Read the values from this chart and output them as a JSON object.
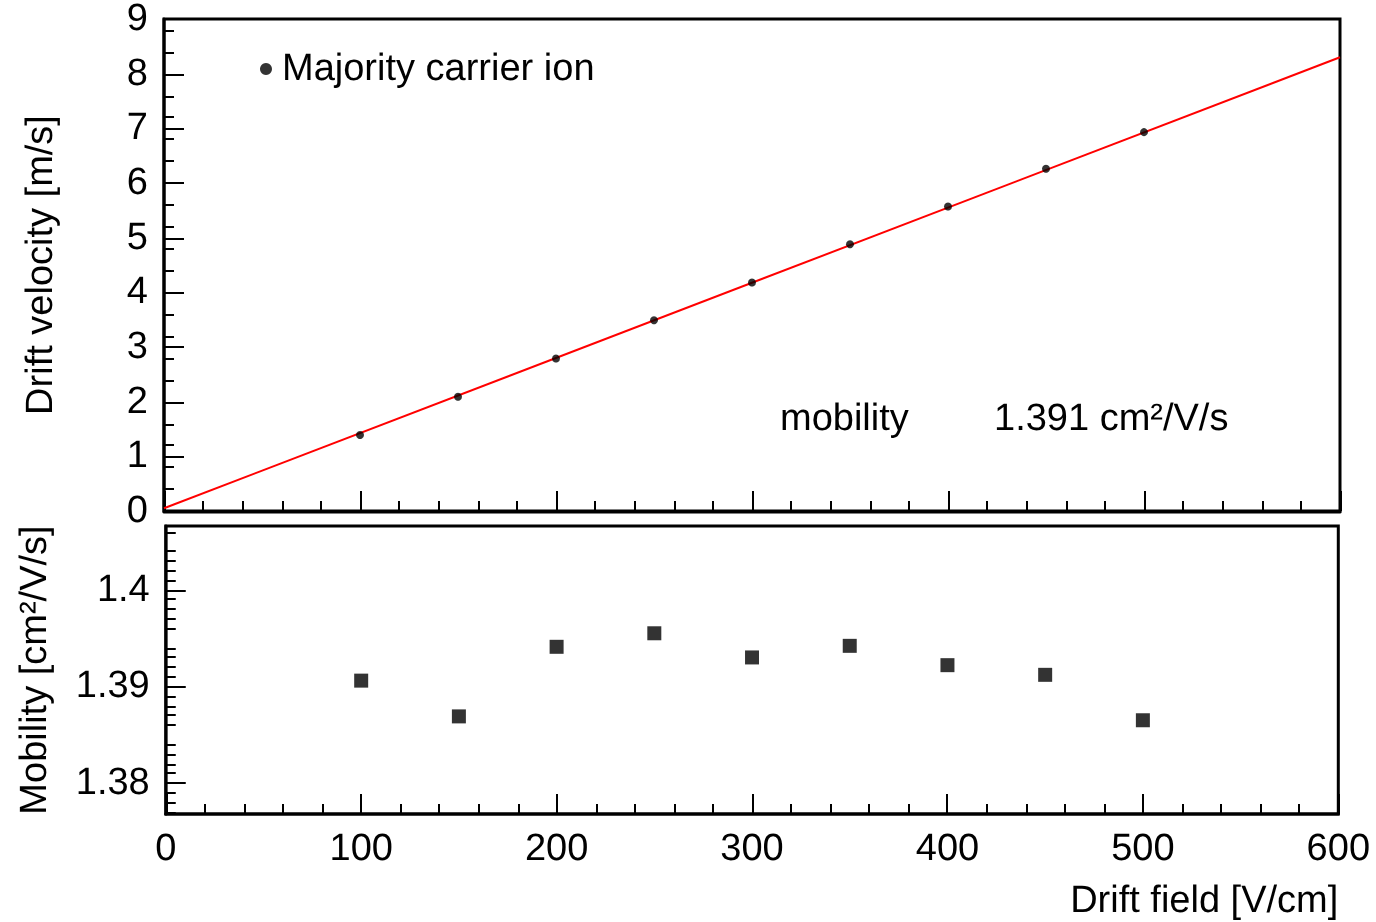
{
  "chart_data": [
    {
      "type": "scatter",
      "ylabel": "Drift velocity [m/s]",
      "xlim": [
        0,
        600
      ],
      "xticks": [
        0,
        100,
        200,
        300,
        400,
        500,
        600
      ],
      "ylim": [
        0,
        9
      ],
      "yticks": [
        0,
        1,
        2,
        3,
        4,
        5,
        6,
        7,
        8,
        9
      ],
      "tick_labels": "y",
      "grid": false,
      "legend": "top left",
      "annotations": [
        "mobility",
        "1.391 cm²/V/s"
      ],
      "series": [
        {
          "name": "Majority carrier ion",
          "marker": "circle",
          "color": "#000000",
          "x": [
            100,
            150,
            200,
            250,
            300,
            350,
            400,
            450,
            500
          ],
          "values": [
            1.39,
            2.09,
            2.79,
            3.49,
            4.18,
            4.88,
            5.57,
            6.26,
            6.93
          ]
        },
        {
          "type": "line",
          "marker": "none",
          "color": "#ff0000",
          "x": [
            0,
            600
          ],
          "values": [
            0.05,
            8.3
          ]
        }
      ]
    },
    {
      "type": "scatter",
      "xlabel": "Drift field [V/cm]",
      "ylabel": "Mobility [cm²/V/s]",
      "xlim": [
        0,
        600
      ],
      "xticks": [
        0,
        100,
        200,
        300,
        400,
        500,
        600
      ],
      "ylim": [
        1.3768,
        1.4066
      ],
      "yticks": [
        1.38,
        1.39,
        1.4
      ],
      "grid": false,
      "marker": "square",
      "series": [
        {
          "color": "#000000",
          "x": [
            100,
            150,
            200,
            250,
            300,
            350,
            400,
            450,
            500
          ],
          "values": [
            1.3906,
            1.3869,
            1.3941,
            1.3955,
            1.393,
            1.3942,
            1.3922,
            1.3912,
            1.3865
          ]
        }
      ]
    }
  ]
}
